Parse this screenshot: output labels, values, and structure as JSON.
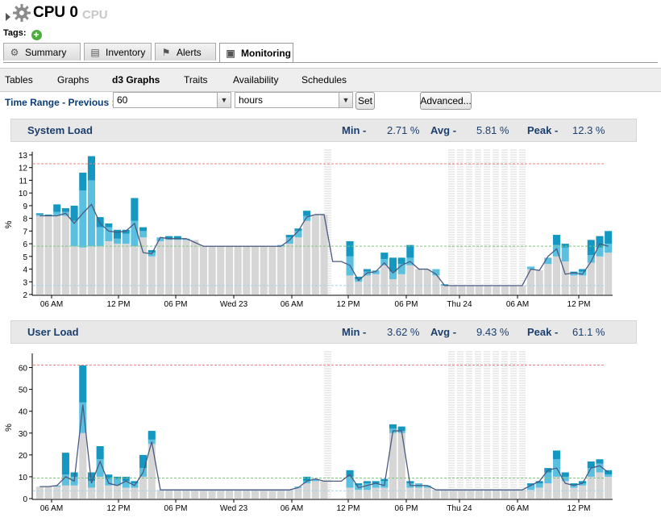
{
  "header": {
    "title": "CPU 0",
    "subtitle": "CPU",
    "tags_label": "Tags:"
  },
  "tabs": [
    {
      "label": "Summary",
      "icon": "gear-icon"
    },
    {
      "label": "Inventory",
      "icon": "clipboard-icon"
    },
    {
      "label": "Alerts",
      "icon": "flag-icon"
    },
    {
      "label": "Monitoring",
      "icon": "monitor-icon",
      "active": true
    }
  ],
  "subtabs": [
    {
      "label": "Tables"
    },
    {
      "label": "Graphs"
    },
    {
      "label": "d3 Graphs",
      "active": true
    },
    {
      "label": "Traits"
    },
    {
      "label": "Availability"
    },
    {
      "label": "Schedules"
    }
  ],
  "time_range": {
    "label": "Time Range - Previous :",
    "value": "60",
    "unit": "hours",
    "set_label": "Set",
    "advanced_label": "Advanced..."
  },
  "colors": {
    "bar_gray": "#d6d6d6",
    "bar_light": "#5bc0e0",
    "bar_dark": "#1497c0",
    "line": "#4a5a80",
    "peak": "#f08080",
    "avg": "#7fc77f",
    "min": "#9fd3f0",
    "title": "#1b3f6e"
  },
  "panels": [
    {
      "title": "System Load",
      "stats": {
        "min_label": "Min -",
        "min": "2.71 %",
        "avg_label": "Avg -",
        "avg": "5.81 %",
        "peak_label": "Peak -",
        "peak": "12.3 %"
      },
      "chart_data": {
        "type": "bar",
        "ylabel": "%",
        "ylim": [
          2,
          13
        ],
        "yticks": [
          "2",
          "3",
          "4",
          "5",
          "6",
          "7",
          "8",
          "9",
          "10",
          "11",
          "12",
          "13"
        ],
        "xticks": [
          "06 AM",
          "12 PM",
          "06 PM",
          "Wed 23",
          "06 AM",
          "12 PM",
          "06 PM",
          "Thu 24",
          "06 AM",
          "12 PM"
        ],
        "peak": 12.3,
        "avg": 5.81,
        "min": 2.71,
        "base": [
          8.2,
          8.2,
          8.2,
          8.2,
          5.8,
          5.7,
          5.8,
          5.8,
          6.2,
          6.0,
          6.0,
          5.8,
          6.5,
          5.0,
          6.2,
          6.3,
          6.3,
          6.3,
          6.3,
          5.8,
          5.8,
          5.8,
          5.8,
          5.8,
          5.8,
          5.8,
          5.8,
          5.8,
          5.8,
          6.0,
          6.5,
          7.8,
          8.3,
          8.3,
          0,
          0,
          3.5,
          3.0,
          3.5,
          3.6,
          4.3,
          3.2,
          3.6,
          4.3,
          4.0,
          4.0,
          3.5,
          2.7,
          2.7,
          2.7,
          2.7,
          2.7,
          2.7,
          2.7,
          2.7,
          2.7,
          2.7,
          4.0,
          3.9,
          4.4,
          5.0,
          4.6,
          3.5,
          3.5,
          4.5,
          5.0,
          5.3
        ],
        "light": [
          0.1,
          0,
          0.3,
          0.3,
          2.0,
          4.5,
          5.2,
          1.5,
          1.1,
          0.4,
          0.8,
          2.0,
          0.5,
          0.3,
          0.3,
          0.1,
          0.1,
          0.1,
          0,
          0,
          0,
          0,
          0,
          0,
          0,
          0,
          0,
          0,
          0.1,
          0.5,
          0.5,
          0.4,
          0,
          0,
          0,
          0,
          1.5,
          0.2,
          0.3,
          0.3,
          0.5,
          0.6,
          0.8,
          0.6,
          0,
          0,
          0.5,
          0,
          0,
          0,
          0,
          0,
          0,
          0,
          0,
          0,
          0,
          0.2,
          0,
          0.5,
          0.9,
          1.1,
          0.2,
          0.3,
          0.6,
          0.7,
          0.7
        ],
        "dark": [
          0.1,
          0.1,
          0.6,
          0.3,
          1.2,
          1.4,
          1.9,
          0.8,
          0.3,
          0.7,
          0.3,
          1.8,
          0.3,
          0.2,
          0,
          0.2,
          0.2,
          0,
          0,
          0,
          0,
          0,
          0,
          0,
          0,
          0,
          0,
          0,
          0,
          0.2,
          0.2,
          0.4,
          0,
          0,
          0,
          0,
          1.2,
          0.2,
          0.2,
          0,
          0.5,
          1.1,
          0.5,
          1.0,
          0,
          0,
          0,
          0.1,
          0,
          0,
          0,
          0,
          0,
          0,
          0,
          0,
          0,
          0,
          0,
          0,
          0.8,
          0.3,
          0.1,
          0.2,
          1.2,
          0.9,
          1.0
        ],
        "line": [
          8.2,
          8.2,
          8.2,
          8.4,
          7.6,
          8.4,
          9.1,
          7.6,
          7.0,
          6.9,
          7.0,
          7.6,
          5.3,
          5.2,
          6.5,
          6.4,
          6.4,
          6.4,
          6.1,
          5.8,
          5.8,
          5.8,
          5.8,
          5.8,
          5.8,
          5.8,
          5.8,
          5.8,
          5.8,
          6.3,
          7.0,
          8.1,
          8.3,
          8.3,
          4.6,
          4.6,
          4.3,
          3.1,
          3.7,
          3.8,
          4.5,
          3.7,
          4.3,
          4.6,
          4.0,
          4.0,
          3.6,
          2.7,
          2.7,
          2.7,
          2.7,
          2.7,
          2.7,
          2.7,
          2.7,
          2.7,
          2.7,
          4.0,
          3.9,
          5.0,
          5.6,
          3.6,
          3.7,
          3.6,
          4.6,
          6.0,
          5.8
        ]
      }
    },
    {
      "title": "User Load",
      "stats": {
        "min_label": "Min -",
        "min": "3.62 %",
        "avg_label": "Avg -",
        "avg": "9.43 %",
        "peak_label": "Peak -",
        "peak": "61.1 %"
      },
      "chart_data": {
        "type": "bar",
        "ylabel": "%",
        "ylim": [
          0,
          65
        ],
        "yticks": [
          "0",
          "10",
          "20",
          "30",
          "40",
          "50",
          "60"
        ],
        "xticks": [
          "06 AM",
          "12 PM",
          "06 PM",
          "Wed 23",
          "06 AM",
          "12 PM",
          "06 PM",
          "Thu 24",
          "06 AM",
          "12 PM"
        ],
        "peak": 61.1,
        "avg": 9.43,
        "min": 3.62,
        "base": [
          5.5,
          5.5,
          5.5,
          6,
          6,
          30,
          5,
          10,
          6,
          6,
          5,
          5,
          10,
          25,
          4,
          4,
          4,
          4,
          4,
          4,
          4,
          4,
          4,
          4,
          4,
          4,
          4,
          4,
          4,
          4,
          5,
          7,
          8,
          8,
          0,
          0,
          5,
          4,
          4,
          5,
          5,
          30,
          30,
          5,
          5,
          5,
          4,
          4,
          4,
          4,
          4,
          4,
          4,
          4,
          4,
          4,
          4,
          4,
          5,
          7,
          10,
          8,
          5,
          6,
          10,
          12,
          10
        ],
        "light": [
          0,
          0,
          0.5,
          5,
          4,
          14,
          3,
          8,
          3,
          3,
          3,
          2,
          4,
          2,
          0,
          0,
          0,
          0,
          0,
          0,
          0,
          0,
          0,
          0,
          0,
          0,
          0,
          0,
          0,
          0,
          0.5,
          1,
          1,
          0,
          0,
          0,
          5,
          2,
          3,
          2,
          3,
          2,
          1,
          2,
          2,
          1,
          0,
          0,
          0,
          0,
          0,
          0,
          0,
          0,
          0,
          0,
          0,
          2,
          2,
          5,
          8,
          2,
          1,
          1,
          4,
          4,
          1
        ],
        "dark": [
          0,
          0,
          0,
          10,
          2,
          17,
          4,
          6,
          2,
          1,
          2,
          1,
          6,
          4,
          0,
          0,
          0,
          0,
          0,
          0,
          0,
          0,
          0,
          0,
          0,
          0,
          0,
          0,
          0,
          0,
          0,
          2,
          0,
          0,
          0,
          0,
          3,
          1,
          1,
          1,
          1,
          2,
          2,
          1,
          0,
          0,
          0,
          0,
          0,
          0,
          0,
          0,
          0,
          0,
          0,
          0,
          0,
          1,
          1,
          2,
          4,
          2,
          1,
          1,
          3,
          2,
          2
        ],
        "line": [
          5.5,
          5.5,
          6,
          10,
          8,
          43,
          7,
          17,
          7,
          6,
          8,
          6,
          12,
          26,
          4,
          4,
          4,
          4,
          4,
          4,
          4,
          4,
          4,
          4,
          4,
          4,
          4,
          4,
          4,
          4,
          5,
          8,
          9,
          8,
          8,
          8,
          11,
          5,
          6,
          7,
          6,
          31,
          31,
          6,
          6,
          6,
          4,
          4,
          4,
          4,
          4,
          4,
          4,
          4,
          4,
          4,
          4,
          6,
          8,
          13,
          14,
          7,
          6,
          7,
          14,
          15,
          12
        ]
      }
    }
  ]
}
